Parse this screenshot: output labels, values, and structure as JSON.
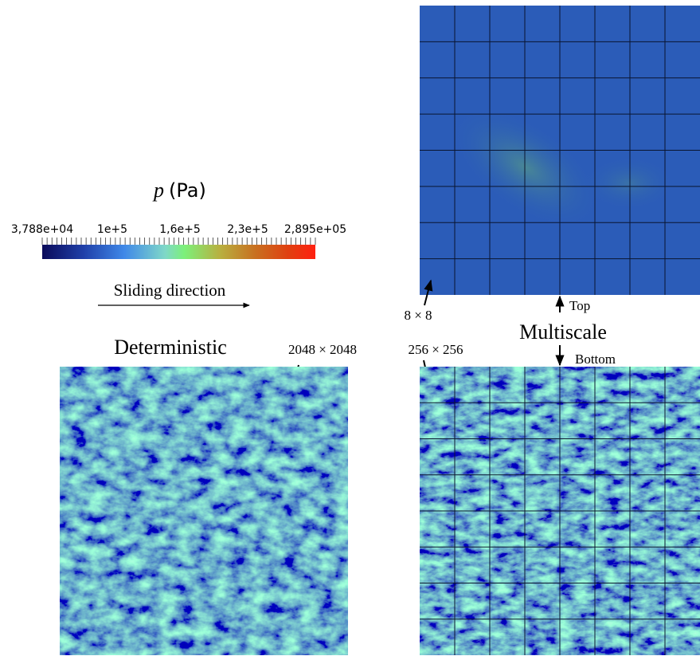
{
  "legend": {
    "symbol": "p",
    "unit": "(Pa)",
    "ticks": [
      "3,788e+04",
      "1e+5",
      "1,6e+5",
      "2,3e+5",
      "2,895e+05"
    ]
  },
  "sliding_label": "Sliding direction",
  "deterministic": {
    "title": "Deterministic",
    "resolution": "2048 × 2048"
  },
  "multiscale": {
    "title": "Multiscale",
    "top_label": "Top",
    "bottom_label": "Bottom",
    "top_resolution": "8 × 8",
    "bottom_resolution": "256 × 256"
  }
}
